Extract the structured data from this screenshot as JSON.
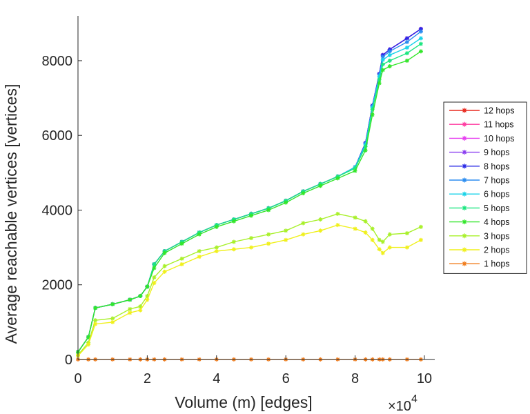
{
  "chart_data": {
    "type": "line",
    "xlabel": "Volume (m) [edges]",
    "ylabel": "Average reachable vertices [vertices]",
    "x_multiplier": "×10",
    "x_multiplier_exp": "4",
    "xlim": [
      0,
      10.3
    ],
    "ylim": [
      0,
      9200
    ],
    "xticks": [
      0,
      2,
      4,
      6,
      8,
      10
    ],
    "yticks": [
      0,
      2000,
      4000,
      6000,
      8000
    ],
    "xtick_labels": [
      "0",
      "2",
      "4",
      "6",
      "8",
      "10"
    ],
    "ytick_labels": [
      "0",
      "2000",
      "4000",
      "6000",
      "8000"
    ],
    "legend_position": "right",
    "x": [
      0,
      0.3,
      0.5,
      1.0,
      1.5,
      1.8,
      2.0,
      2.2,
      2.5,
      3.0,
      3.5,
      4.0,
      4.5,
      5.0,
      5.5,
      6.0,
      6.5,
      7.0,
      7.5,
      8.0,
      8.3,
      8.5,
      8.7,
      8.8,
      9.0,
      9.5,
      9.9
    ],
    "series": [
      {
        "name": "12 hops",
        "color": "#e8281e",
        "values": [
          200,
          600,
          1380,
          1480,
          1600,
          1700,
          1950,
          2550,
          2900,
          3150,
          3400,
          3600,
          3750,
          3900,
          4050,
          4250,
          4500,
          4700,
          4900,
          5150,
          5800,
          6800,
          7650,
          8150,
          8300,
          8600,
          8850
        ]
      },
      {
        "name": "11 hops",
        "color": "#ff3aa0",
        "values": [
          200,
          600,
          1380,
          1480,
          1600,
          1700,
          1950,
          2550,
          2900,
          3150,
          3400,
          3600,
          3750,
          3900,
          4050,
          4250,
          4500,
          4700,
          4900,
          5150,
          5800,
          6800,
          7650,
          8150,
          8300,
          8600,
          8850
        ]
      },
      {
        "name": "10 hops",
        "color": "#e63df0",
        "values": [
          200,
          600,
          1380,
          1480,
          1600,
          1700,
          1950,
          2550,
          2900,
          3150,
          3400,
          3600,
          3750,
          3900,
          4050,
          4250,
          4500,
          4700,
          4900,
          5150,
          5800,
          6800,
          7650,
          8150,
          8300,
          8600,
          8850
        ]
      },
      {
        "name": "9 hops",
        "color": "#8a3df0",
        "values": [
          200,
          600,
          1380,
          1480,
          1600,
          1700,
          1950,
          2550,
          2900,
          3150,
          3400,
          3600,
          3750,
          3900,
          4050,
          4250,
          4500,
          4700,
          4900,
          5150,
          5800,
          6800,
          7650,
          8150,
          8300,
          8600,
          8850
        ]
      },
      {
        "name": "8 hops",
        "color": "#2a2ae6",
        "values": [
          200,
          600,
          1380,
          1480,
          1600,
          1700,
          1950,
          2550,
          2900,
          3150,
          3400,
          3600,
          3750,
          3900,
          4050,
          4250,
          4500,
          4700,
          4900,
          5150,
          5800,
          6800,
          7650,
          8150,
          8300,
          8600,
          8850
        ]
      },
      {
        "name": "7 hops",
        "color": "#2a8cf0",
        "values": [
          200,
          600,
          1380,
          1480,
          1600,
          1700,
          1950,
          2550,
          2900,
          3150,
          3400,
          3600,
          3750,
          3900,
          4050,
          4250,
          4500,
          4700,
          4900,
          5150,
          5780,
          6780,
          7620,
          8100,
          8250,
          8500,
          8780
        ]
      },
      {
        "name": "6 hops",
        "color": "#19d3e8",
        "values": [
          200,
          600,
          1380,
          1480,
          1600,
          1700,
          1950,
          2550,
          2900,
          3150,
          3400,
          3600,
          3750,
          3900,
          4050,
          4250,
          4500,
          4700,
          4900,
          5150,
          5750,
          6750,
          7580,
          8020,
          8150,
          8350,
          8600
        ]
      },
      {
        "name": "5 hops",
        "color": "#1ce680",
        "values": [
          200,
          600,
          1380,
          1480,
          1600,
          1700,
          1950,
          2550,
          2900,
          3150,
          3400,
          3600,
          3750,
          3900,
          4050,
          4250,
          4500,
          4700,
          4900,
          5120,
          5700,
          6700,
          7500,
          7900,
          8000,
          8200,
          8450
        ]
      },
      {
        "name": "4 hops",
        "color": "#33e62a",
        "values": [
          200,
          600,
          1380,
          1480,
          1600,
          1700,
          1950,
          2450,
          2850,
          3100,
          3350,
          3550,
          3700,
          3850,
          4000,
          4200,
          4450,
          4650,
          4850,
          5050,
          5600,
          6550,
          7400,
          7750,
          7850,
          8000,
          8250
        ]
      },
      {
        "name": "3 hops",
        "color": "#a8f02a",
        "values": [
          120,
          450,
          1050,
          1100,
          1350,
          1420,
          1700,
          2200,
          2500,
          2700,
          2900,
          3000,
          3150,
          3250,
          3350,
          3450,
          3650,
          3750,
          3900,
          3800,
          3700,
          3500,
          3200,
          3150,
          3350,
          3380,
          3550
        ]
      },
      {
        "name": "2 hops",
        "color": "#f0f01c",
        "values": [
          100,
          400,
          950,
          1000,
          1250,
          1320,
          1600,
          2050,
          2350,
          2550,
          2750,
          2900,
          2950,
          3000,
          3100,
          3200,
          3350,
          3450,
          3600,
          3500,
          3400,
          3200,
          2950,
          2850,
          3000,
          3000,
          3200
        ]
      },
      {
        "name": "1 hops",
        "color": "#f07c1c",
        "values": [
          2,
          2,
          2,
          2,
          2,
          2,
          2,
          2,
          2,
          2,
          2,
          2,
          2,
          2,
          2,
          2,
          2,
          2,
          2,
          2,
          2,
          2,
          2,
          2,
          2,
          2,
          2
        ]
      }
    ]
  }
}
